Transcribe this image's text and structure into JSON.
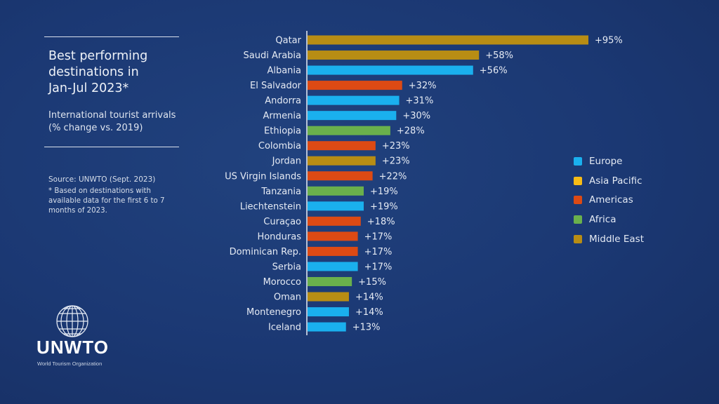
{
  "panel": {
    "title": "Best performing\ndestinations in\nJan-Jul 2023*",
    "subtitle": "International tourist arrivals\n(% change vs. 2019)",
    "source": "Source: UNWTO (Sept. 2023)",
    "note": "*  Based on destinations with available data for the first 6 to 7 months of 2023."
  },
  "logo": {
    "name": "UNWTO",
    "tagline": "World Tourism Organization"
  },
  "colors": {
    "Europe": "#1ab0ee",
    "Asia Pacific": "#f7bc16",
    "Americas": "#dd4a14",
    "Africa": "#6ab04c",
    "Middle East": "#b88d14"
  },
  "chart_data": {
    "type": "bar",
    "orientation": "horizontal",
    "title": "Best performing destinations in Jan-Jul 2023*",
    "xlabel": "International tourist arrivals (% change vs. 2019)",
    "xlim": [
      0,
      95
    ],
    "grid": false,
    "legend_position": "right",
    "legend": [
      "Europe",
      "Asia Pacific",
      "Americas",
      "Africa",
      "Middle East"
    ],
    "categories": [
      "Qatar",
      "Saudi Arabia",
      "Albania",
      "El Salvador",
      "Andorra",
      "Armenia",
      "Ethiopia",
      "Colombia",
      "Jordan",
      "US Virgin Islands",
      "Tanzania",
      "Liechtenstein",
      "Curaçao",
      "Honduras",
      "Dominican Rep.",
      "Serbia",
      "Morocco",
      "Oman",
      "Montenegro",
      "Iceland"
    ],
    "values": [
      95,
      58,
      56,
      32,
      31,
      30,
      28,
      23,
      23,
      22,
      19,
      19,
      18,
      17,
      17,
      17,
      15,
      14,
      14,
      13
    ],
    "regions": [
      "Middle East",
      "Middle East",
      "Europe",
      "Americas",
      "Europe",
      "Europe",
      "Africa",
      "Americas",
      "Middle East",
      "Americas",
      "Africa",
      "Europe",
      "Americas",
      "Americas",
      "Americas",
      "Europe",
      "Africa",
      "Middle East",
      "Europe",
      "Europe"
    ],
    "labels": [
      "+95%",
      "+58%",
      "+56%",
      "+32%",
      "+31%",
      "+30%",
      "+28%",
      "+23%",
      "+23%",
      "+22%",
      "+19%",
      "+19%",
      "+18%",
      "+17%",
      "+17%",
      "+17%",
      "+15%",
      "+14%",
      "+14%",
      "+13%"
    ]
  }
}
